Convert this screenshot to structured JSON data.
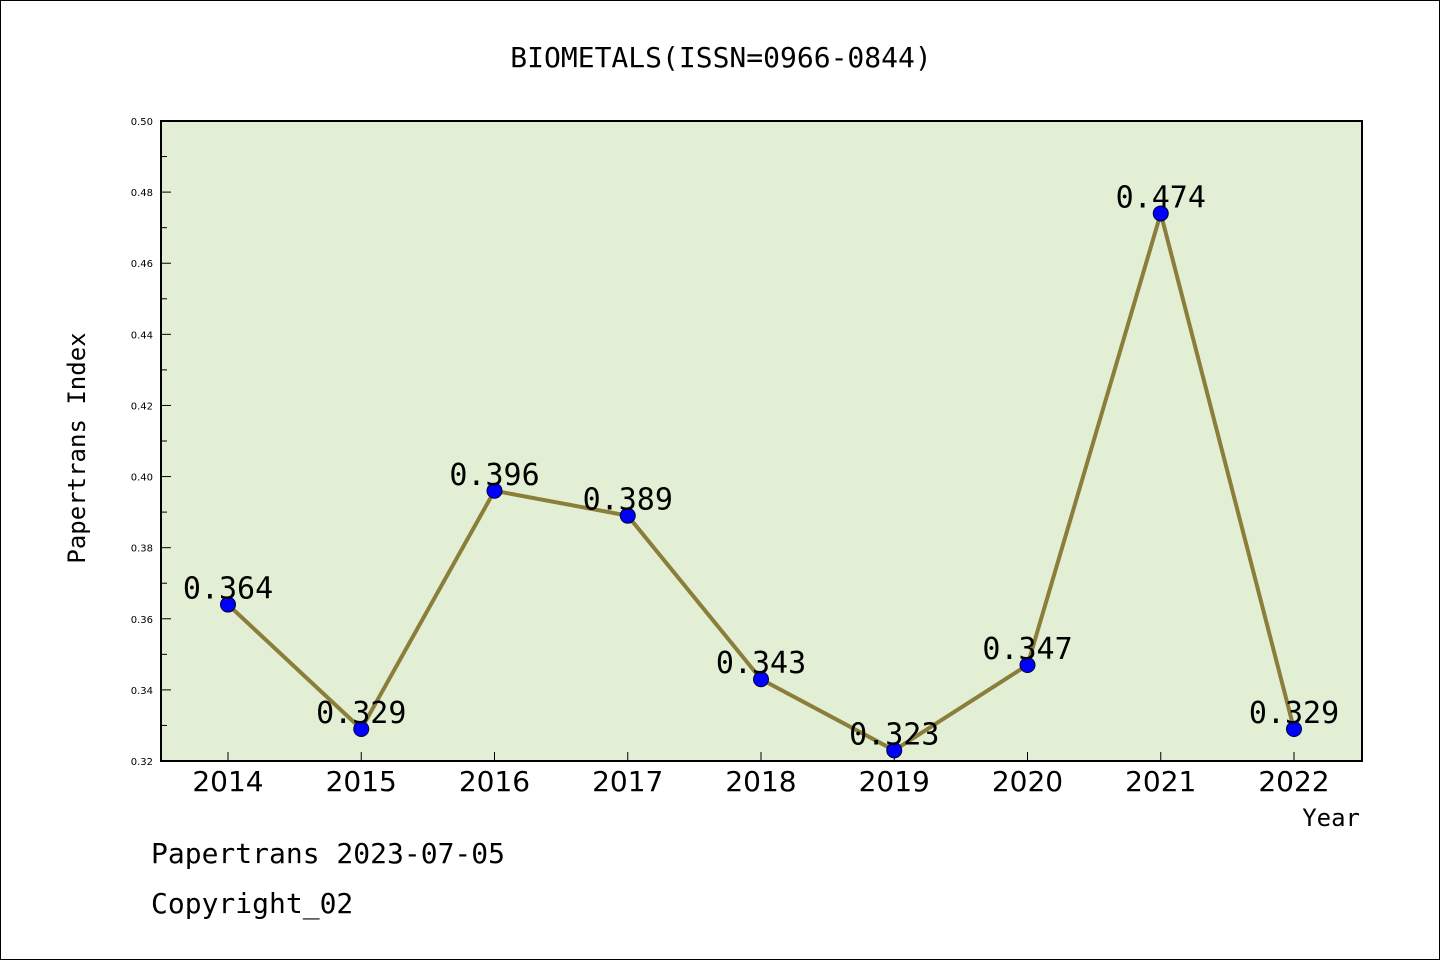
{
  "footer": {
    "date_line": "Papertrans 2023-07-05",
    "copyright": "Copyright_02"
  },
  "chart_data": {
    "type": "line",
    "title": "BIOMETALS(ISSN=0966-0844)",
    "xlabel": "Year",
    "ylabel": "Papertrans Index",
    "categories": [
      "2014",
      "2015",
      "2016",
      "2017",
      "2018",
      "2019",
      "2020",
      "2021",
      "2022"
    ],
    "values": [
      0.364,
      0.329,
      0.396,
      0.389,
      0.343,
      0.323,
      0.347,
      0.474,
      0.329
    ],
    "data_labels": [
      "0.364",
      "0.329",
      "0.396",
      "0.389",
      "0.343",
      "0.323",
      "0.347",
      "0.474",
      "0.329"
    ],
    "ylim": [
      0.32,
      0.5
    ],
    "yticks": [
      "0.32",
      "0.34",
      "0.36",
      "0.38",
      "0.40",
      "0.42",
      "0.44",
      "0.46",
      "0.48",
      "0.50"
    ],
    "grid": false,
    "colors": {
      "plot_background": "#e2efd5",
      "line": "#8b7d3a",
      "marker": "#0000ff"
    }
  }
}
